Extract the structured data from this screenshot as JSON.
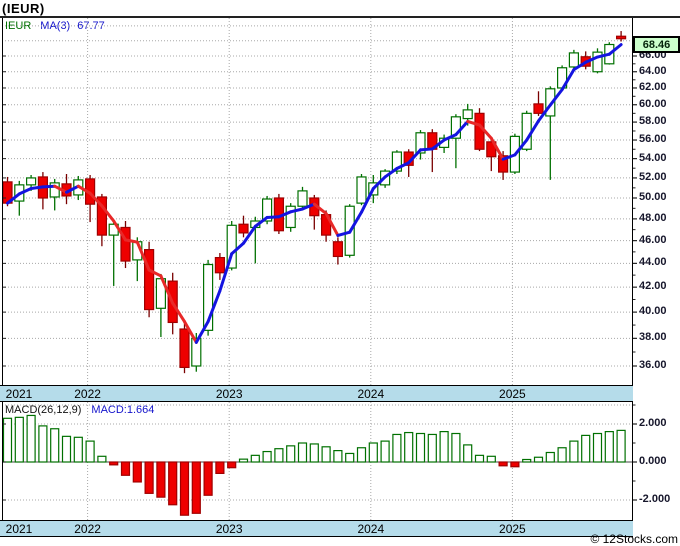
{
  "title": "(IEUR)",
  "footer": {
    "credit": "© 12Stocks.com"
  },
  "colors": {
    "up": "#007000",
    "down_fill": "#ee0000",
    "down_border": "#a00000",
    "down_wick": "#7a0000",
    "ma_up": "#1414e0",
    "ma_down": "#e82828",
    "grid": "#a8a8a8",
    "band_bg": "#b5dcea",
    "badge_bg": "#ccffcc",
    "axis_text": "#16162b"
  },
  "main_chart": {
    "legend": {
      "symbol": "IEUR",
      "ma_label": "MA(3)",
      "ma_value": "67.77"
    },
    "last_price_badge": "68.46",
    "price_axis": {
      "labels": [
        "66.00",
        "64.00",
        "62.00",
        "60.00",
        "58.00",
        "56.00",
        "54.00",
        "52.00",
        "50.00",
        "48.00",
        "46.00",
        "44.00",
        "42.00",
        "40.00",
        "38.00",
        "36.00"
      ]
    }
  },
  "macd_panel": {
    "legend_label": "MACD(26,12,9)",
    "legend_value": "MACD:1.664",
    "axis_labels": [
      "2.000",
      "0.000",
      "-2.000"
    ]
  },
  "x_axis": {
    "years": [
      "2021",
      "2022",
      "2023",
      "2024",
      "2025"
    ]
  },
  "chart_data": {
    "type": "candlestick",
    "symbol": "IEUR",
    "interval": "monthly",
    "scale": "log",
    "title": "(IEUR)",
    "last_price": 68.46,
    "ma_period": 3,
    "ma_last": 67.77,
    "price_axis_ticks": [
      36,
      38,
      40,
      42,
      44,
      46,
      48,
      50,
      52,
      54,
      56,
      58,
      60,
      62,
      64,
      66
    ],
    "months": [
      "2021-06",
      "2021-07",
      "2021-08",
      "2021-09",
      "2021-10",
      "2021-11",
      "2021-12",
      "2022-01",
      "2022-02",
      "2022-03",
      "2022-04",
      "2022-05",
      "2022-06",
      "2022-07",
      "2022-08",
      "2022-09",
      "2022-10",
      "2022-11",
      "2022-12",
      "2023-01",
      "2023-02",
      "2023-03",
      "2023-04",
      "2023-05",
      "2023-06",
      "2023-07",
      "2023-08",
      "2023-09",
      "2023-10",
      "2023-11",
      "2023-12",
      "2024-01",
      "2024-02",
      "2024-03",
      "2024-04",
      "2024-05",
      "2024-06",
      "2024-07",
      "2024-08",
      "2024-09",
      "2024-10",
      "2024-11",
      "2024-12",
      "2025-01",
      "2025-02",
      "2025-03",
      "2025-04",
      "2025-05",
      "2025-06",
      "2025-07",
      "2025-08",
      "2025-09",
      "2025-10"
    ],
    "ohlc": [
      [
        51.6,
        52.1,
        49.2,
        49.5
      ],
      [
        49.7,
        51.7,
        48.3,
        51.3
      ],
      [
        51.3,
        52.3,
        50.7,
        52.0
      ],
      [
        52.1,
        52.6,
        48.9,
        50.0
      ],
      [
        50.1,
        51.9,
        48.8,
        51.5
      ],
      [
        51.4,
        52.4,
        49.4,
        50.2
      ],
      [
        50.3,
        52.2,
        49.8,
        51.8
      ],
      [
        51.9,
        52.3,
        47.7,
        49.4
      ],
      [
        50.1,
        50.4,
        45.5,
        46.5
      ],
      [
        46.5,
        47.9,
        42.1,
        47.5
      ],
      [
        47.2,
        47.8,
        43.6,
        44.2
      ],
      [
        44.3,
        46.3,
        42.5,
        45.9
      ],
      [
        45.2,
        45.9,
        39.6,
        40.2
      ],
      [
        40.3,
        43.1,
        38.1,
        42.7
      ],
      [
        42.5,
        43.2,
        38.3,
        39.2
      ],
      [
        38.7,
        39.3,
        35.5,
        35.9
      ],
      [
        36.0,
        38.4,
        35.6,
        38.0
      ],
      [
        38.6,
        44.3,
        38.2,
        43.9
      ],
      [
        44.5,
        44.9,
        42.6,
        43.2
      ],
      [
        43.6,
        47.8,
        43.4,
        47.4
      ],
      [
        47.5,
        48.3,
        46.3,
        46.7
      ],
      [
        47.2,
        48.2,
        44.0,
        47.8
      ],
      [
        47.8,
        50.2,
        47.5,
        49.9
      ],
      [
        50.0,
        50.4,
        46.6,
        46.9
      ],
      [
        47.2,
        49.5,
        46.8,
        49.2
      ],
      [
        49.2,
        51.1,
        48.9,
        50.7
      ],
      [
        50.0,
        50.3,
        47.0,
        48.3
      ],
      [
        48.4,
        48.8,
        45.9,
        46.5
      ],
      [
        45.9,
        46.3,
        43.9,
        44.6
      ],
      [
        44.7,
        49.4,
        44.5,
        49.2
      ],
      [
        49.5,
        52.4,
        49.3,
        52.1
      ],
      [
        50.3,
        52.3,
        49.5,
        51.5
      ],
      [
        51.3,
        52.9,
        51.0,
        52.7
      ],
      [
        52.7,
        54.9,
        52.4,
        54.7
      ],
      [
        54.7,
        55.0,
        52.1,
        53.3
      ],
      [
        54.6,
        57.1,
        53.9,
        56.8
      ],
      [
        56.8,
        57.2,
        52.6,
        55.0
      ],
      [
        55.2,
        56.6,
        54.6,
        56.2
      ],
      [
        56.2,
        58.9,
        53.0,
        58.6
      ],
      [
        58.4,
        60.1,
        57.6,
        59.4
      ],
      [
        59.0,
        59.6,
        54.8,
        55.0
      ],
      [
        55.8,
        56.2,
        52.7,
        54.2
      ],
      [
        54.3,
        54.8,
        51.8,
        52.6
      ],
      [
        52.6,
        56.7,
        52.4,
        56.4
      ],
      [
        55.0,
        59.3,
        54.8,
        59.0
      ],
      [
        60.1,
        61.6,
        58.7,
        59.0
      ],
      [
        58.7,
        62.2,
        51.8,
        61.9
      ],
      [
        62.0,
        64.8,
        61.7,
        64.5
      ],
      [
        64.6,
        66.8,
        64.2,
        66.4
      ],
      [
        65.9,
        66.6,
        64.3,
        64.7
      ],
      [
        64.0,
        67.0,
        63.8,
        66.5
      ],
      [
        65.0,
        67.8,
        64.9,
        67.5
      ],
      [
        68.6,
        69.3,
        67.9,
        68.46
      ]
    ],
    "macd": {
      "params": "26,12,9",
      "last": 1.664,
      "axis_ticks": [
        2,
        0,
        -2
      ],
      "histogram": [
        2.3,
        2.35,
        2.45,
        1.9,
        1.75,
        1.35,
        1.3,
        1.1,
        0.3,
        -0.15,
        -0.7,
        -1.05,
        -1.65,
        -1.85,
        -2.25,
        -2.8,
        -2.7,
        -1.75,
        -0.6,
        -0.3,
        0.15,
        0.35,
        0.55,
        0.7,
        0.85,
        1.0,
        0.95,
        0.8,
        0.6,
        0.45,
        0.75,
        1.0,
        1.1,
        1.45,
        1.55,
        1.5,
        1.45,
        1.6,
        1.5,
        0.9,
        0.35,
        0.3,
        -0.2,
        -0.25,
        0.1,
        0.25,
        0.5,
        0.75,
        1.1,
        1.4,
        1.5,
        1.6,
        1.664
      ]
    }
  }
}
